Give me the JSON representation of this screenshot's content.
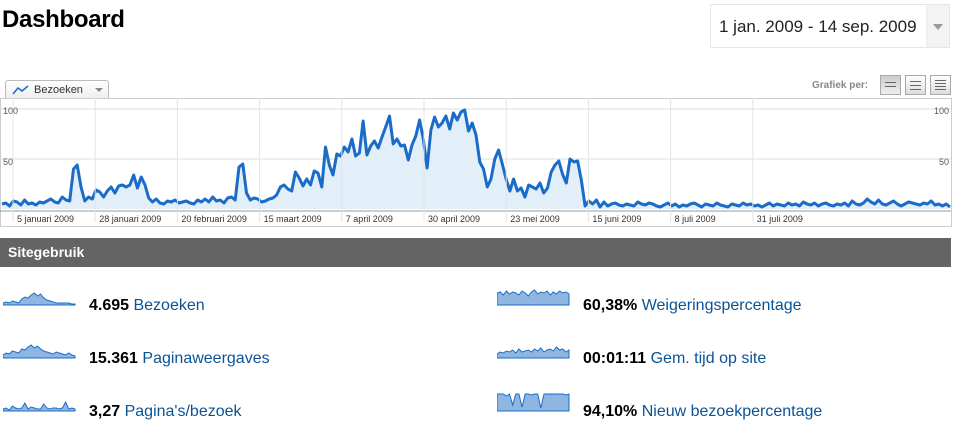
{
  "header": {
    "title": "Dashboard"
  },
  "date_range": {
    "label": "1 jan. 2009 - 14 sep. 2009"
  },
  "graph": {
    "metric_label": "Bezoeken",
    "graph_per_label": "Grafiek per:",
    "y_max_label": "100",
    "y_mid_label": "50",
    "x_labels": [
      "5 januari 2009",
      "28 januari 2009",
      "20 februari 2009",
      "15 maart 2009",
      "7 april 2009",
      "30 april 2009",
      "23 mei 2009",
      "15 juni 2009",
      "8 juli 2009",
      "31 juli 2009"
    ],
    "line_color": "#1a6cc8",
    "fill_color": "#e2eff9"
  },
  "chart_data": {
    "type": "area",
    "ylim": [
      0,
      100
    ],
    "series": [
      {
        "values": [
          5,
          6,
          3,
          8,
          7,
          4,
          9,
          5,
          6,
          4,
          7,
          6,
          8,
          10,
          7,
          6,
          12,
          9,
          8,
          40,
          44,
          22,
          8,
          12,
          10,
          19,
          17,
          12,
          18,
          22,
          16,
          23,
          24,
          22,
          24,
          34,
          21,
          32,
          24,
          11,
          7,
          10,
          6,
          5,
          8,
          7,
          9,
          6,
          7,
          8,
          6,
          5,
          9,
          7,
          10,
          7,
          12,
          8,
          9,
          6,
          11,
          12,
          9,
          42,
          45,
          16,
          9,
          11,
          10,
          7,
          8,
          10,
          11,
          14,
          22,
          24,
          20,
          18,
          37,
          31,
          23,
          30,
          24,
          38,
          36,
          22,
          62,
          44,
          34,
          55,
          53,
          62,
          57,
          70,
          53,
          56,
          88,
          54,
          63,
          68,
          61,
          72,
          82,
          93,
          65,
          70,
          63,
          64,
          49,
          64,
          73,
          89,
          70,
          41,
          79,
          92,
          82,
          86,
          93,
          80,
          96,
          89,
          97,
          99,
          78,
          86,
          74,
          47,
          40,
          22,
          30,
          50,
          59,
          45,
          30,
          18,
          30,
          18,
          21,
          12,
          24,
          22,
          20,
          26,
          16,
          21,
          37,
          44,
          48,
          35,
          26,
          50,
          47,
          48,
          29,
          3,
          8,
          5,
          9,
          2,
          7,
          3,
          5,
          6,
          4,
          3,
          5,
          4,
          3,
          7,
          5,
          4,
          6,
          5,
          3,
          2,
          4,
          6,
          3,
          5,
          2,
          4,
          3,
          5,
          6,
          4,
          2,
          5,
          4,
          3,
          6,
          4,
          3,
          2,
          5,
          4,
          3,
          6,
          4,
          5,
          3,
          4,
          2,
          4,
          6,
          3,
          5,
          4,
          3,
          6,
          4,
          5,
          3,
          7,
          5,
          4,
          6,
          3,
          5,
          6,
          4,
          3,
          5,
          4,
          6,
          3,
          8,
          5,
          4,
          6,
          10,
          7,
          5,
          9,
          5,
          4,
          6,
          8,
          5,
          3,
          5,
          7,
          6,
          5,
          4,
          6,
          5,
          8,
          4,
          5,
          3,
          5,
          2
        ]
      }
    ]
  },
  "section": {
    "title": "Sitegebruik"
  },
  "stats": [
    {
      "value": "4.695",
      "label": "Bezoeken"
    },
    {
      "value": "15.361",
      "label": "Paginaweergaves"
    },
    {
      "value": "3,27",
      "label": "Pagina's/bezoek"
    },
    {
      "value": "60,38%",
      "label": "Weigeringspercentage"
    },
    {
      "value": "00:01:11",
      "label": "Gem. tijd op site"
    },
    {
      "value": "94,10%",
      "label": "Nieuw bezoekpercentage"
    }
  ]
}
